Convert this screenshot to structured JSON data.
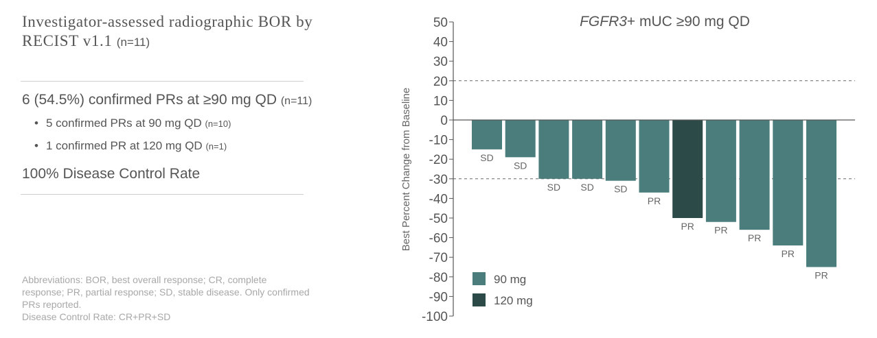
{
  "left": {
    "title_main": "Investigator-assessed radiographic BOR by RECIST v1.1",
    "title_n": "(n=11)",
    "headline": "6 (54.5%) confirmed PRs at ≥90 mg QD",
    "headline_n": "(n=11)",
    "bullets": [
      {
        "text": "5 confirmed PRs at 90 mg QD",
        "n": "(n=10)"
      },
      {
        "text": "1 confirmed PR at 120 mg QD",
        "n": "(n=1)"
      }
    ],
    "dcr": "100% Disease Control Rate",
    "abbreviations": "Abbreviations: BOR, best overall response; CR, complete response; PR, partial response; SD, stable disease. Only confirmed PRs reported.",
    "dcr_definition": "Disease Control Rate: CR+PR+SD"
  },
  "chart_data": {
    "type": "bar",
    "title_italic": "FGFR3",
    "title_rest": "+ mUC ≥90 mg QD",
    "ylabel": "Best Percent Change from Baseline",
    "ylim": [
      -100,
      50
    ],
    "yticks": [
      50,
      40,
      30,
      20,
      10,
      0,
      -10,
      -20,
      -30,
      -40,
      -50,
      -60,
      -70,
      -80,
      -90,
      -100
    ],
    "reference_lines": [
      20,
      -30
    ],
    "colors": {
      "90 mg": "#4a7d7b",
      "120 mg": "#2b4a48"
    },
    "legend": [
      {
        "label": "90 mg",
        "color": "#4a7d7b"
      },
      {
        "label": "120 mg",
        "color": "#2b4a48"
      }
    ],
    "bars": [
      {
        "value": -15,
        "label": "SD",
        "dose": "90 mg"
      },
      {
        "value": -19,
        "label": "SD",
        "dose": "90 mg"
      },
      {
        "value": -30,
        "label": "SD",
        "dose": "90 mg"
      },
      {
        "value": -30,
        "label": "SD",
        "dose": "90 mg"
      },
      {
        "value": -31,
        "label": "SD",
        "dose": "90 mg"
      },
      {
        "value": -37,
        "label": "PR",
        "dose": "90 mg"
      },
      {
        "value": -50,
        "label": "PR",
        "dose": "120 mg"
      },
      {
        "value": -52,
        "label": "PR",
        "dose": "90 mg"
      },
      {
        "value": -56,
        "label": "PR",
        "dose": "90 mg"
      },
      {
        "value": -64,
        "label": "PR",
        "dose": "90 mg"
      },
      {
        "value": -75,
        "label": "PR",
        "dose": "90 mg"
      }
    ]
  }
}
